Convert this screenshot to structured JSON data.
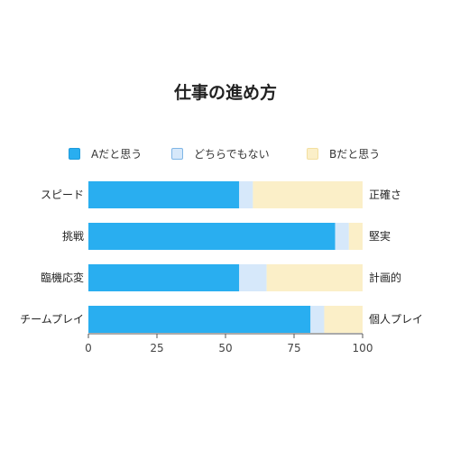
{
  "chart_data": {
    "type": "bar",
    "orientation": "horizontal",
    "stacked": true,
    "title": "仕事の進め方",
    "categories": [
      "スピード",
      "挑戦",
      "臨機応変",
      "チームプレイ"
    ],
    "right_labels": [
      "正確さ",
      "堅実",
      "計画的",
      "個人プレイ"
    ],
    "series": [
      {
        "name": "Aだと思う",
        "color": "#29aef0",
        "values": [
          55,
          90,
          55,
          81
        ]
      },
      {
        "name": "どちらでもない",
        "color": "#d6e8fa",
        "values": [
          5,
          5,
          10,
          5
        ]
      },
      {
        "name": "Bだと思う",
        "color": "#fbefc8",
        "values": [
          40,
          5,
          35,
          14
        ]
      }
    ],
    "xlim": [
      0,
      100
    ],
    "xticks": [
      "0",
      "25",
      "50",
      "75",
      "100"
    ],
    "legend_position": "top",
    "grid": false
  }
}
